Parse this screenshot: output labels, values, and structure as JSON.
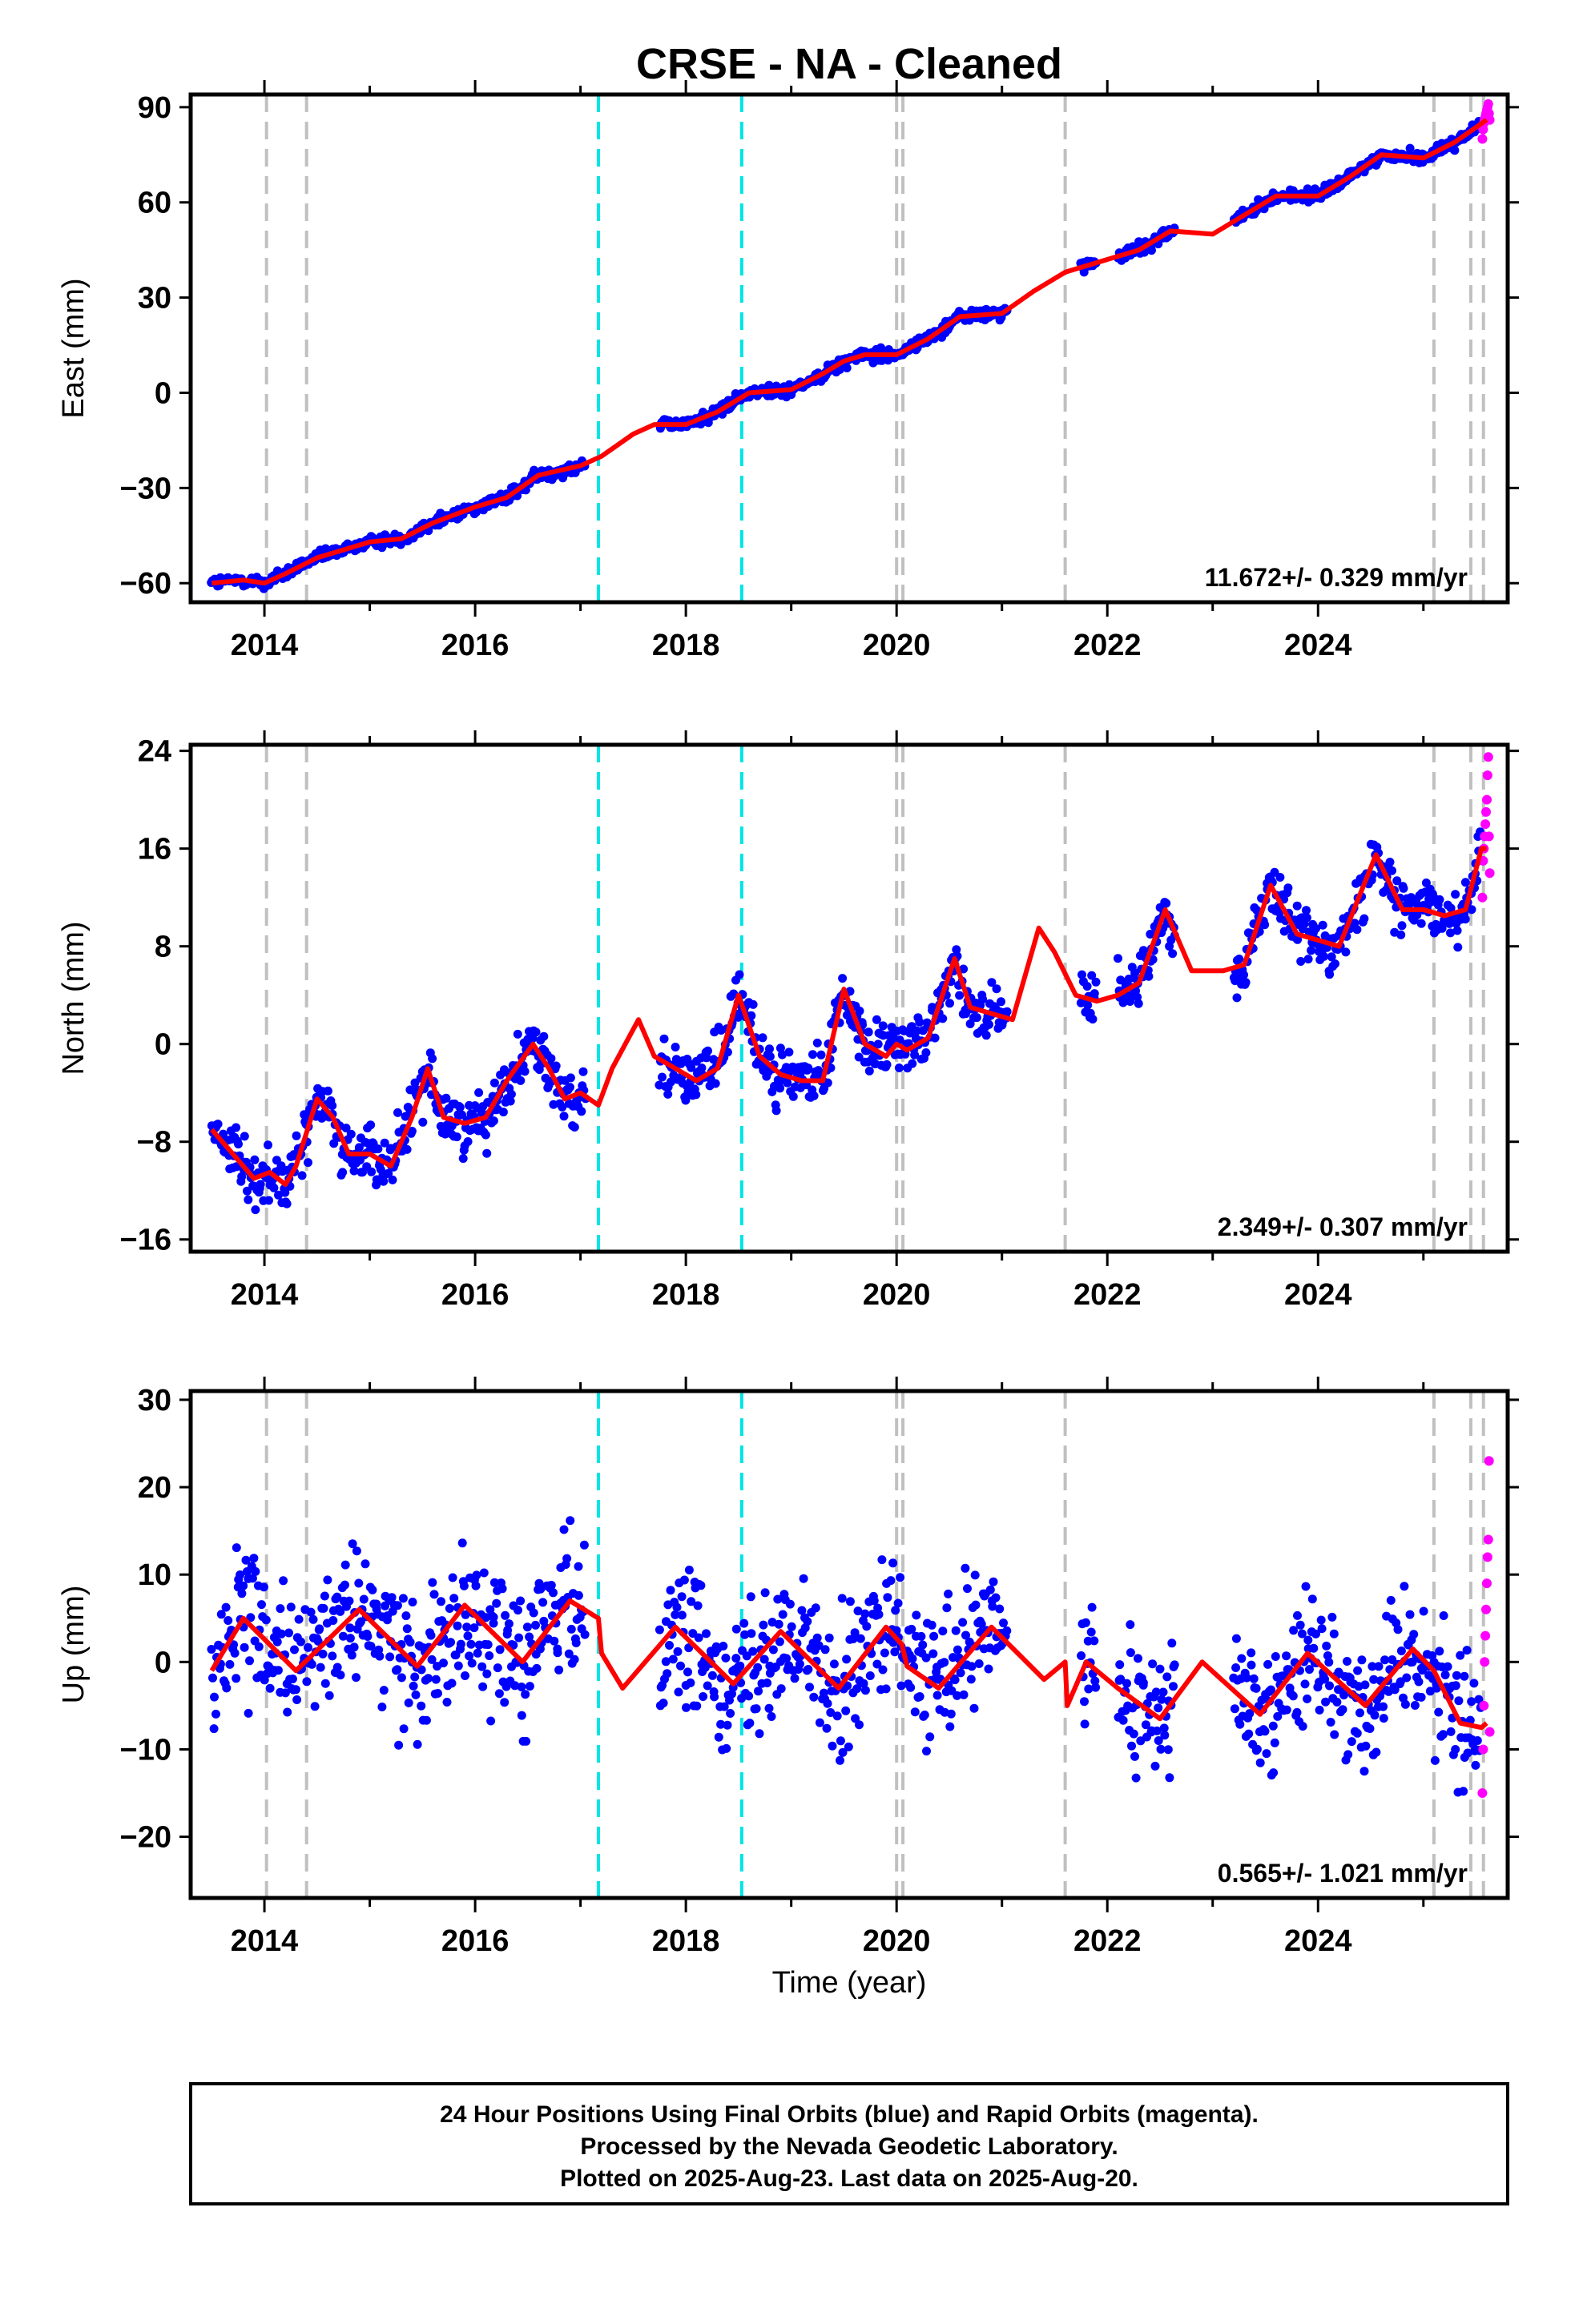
{
  "title": "CRSE  - NA - Cleaned",
  "xlabel": "Time (year)",
  "footer": {
    "line1": "24 Hour Positions Using Final Orbits (blue) and Rapid Orbits (magenta).",
    "line2": "Processed by the Nevada Geodetic Laboratory.",
    "line3": "Plotted on 2025-Aug-23. Last data on 2025-Aug-20."
  },
  "colors": {
    "final_orbits": "#0000ff",
    "rapid_orbits": "#ff00ff",
    "model": "#ff0000",
    "equipment_change": "#c0c0c0",
    "earthquake": "#00e5e5"
  },
  "chart_data": [
    {
      "type": "scatter",
      "ylabel": "East (mm)",
      "rate_text": "11.672+/- 0.329 mm/yr",
      "xlim": [
        2013.3,
        2025.8
      ],
      "ylim": [
        -66,
        94
      ],
      "yticks": [
        -60,
        -30,
        0,
        30,
        60,
        90
      ],
      "xticks": [
        2014,
        2016,
        2018,
        2020,
        2022,
        2024
      ],
      "grid": false,
      "gray_lines": [
        2014.02,
        2014.4,
        2020.0,
        2020.06,
        2021.6,
        2025.1,
        2025.45,
        2025.57
      ],
      "cyan_lines": [
        2017.17,
        2018.53
      ],
      "model": {
        "x": [
          2013.5,
          2013.8,
          2014.0,
          2014.2,
          2014.5,
          2015.0,
          2015.3,
          2015.6,
          2016.0,
          2016.3,
          2016.6,
          2017.0,
          2017.2,
          2017.5,
          2017.7,
          2018.0,
          2018.3,
          2018.6,
          2019.0,
          2019.3,
          2019.5,
          2019.7,
          2020.0,
          2020.3,
          2020.6,
          2021.0,
          2021.3,
          2021.6,
          2022.0,
          2022.3,
          2022.6,
          2023.0,
          2023.3,
          2023.6,
          2024.0,
          2024.3,
          2024.6,
          2025.0,
          2025.3,
          2025.6
        ],
        "y": [
          -60,
          -59,
          -60,
          -57,
          -52,
          -47,
          -46,
          -41,
          -36,
          -33,
          -26,
          -23,
          -20,
          -13,
          -10,
          -10,
          -6,
          0,
          1,
          6,
          10,
          12,
          12,
          17,
          24,
          25,
          32,
          38,
          42,
          45,
          51,
          50,
          56,
          62,
          62,
          68,
          75,
          74,
          79,
          86
        ]
      },
      "final_points": {
        "segments": [
          [
            2013.5,
            2017.05
          ],
          [
            2017.75,
            2021.05
          ],
          [
            2021.75,
            2021.9
          ],
          [
            2022.1,
            2022.65
          ],
          [
            2023.2,
            2025.55
          ]
        ],
        "noise_mm": 1.4
      },
      "rapid_points": {
        "x_start": 2025.56,
        "x_end": 2025.63,
        "y_values": [
          80,
          83,
          85,
          86,
          87,
          88,
          89,
          90,
          91,
          88,
          86
        ]
      }
    },
    {
      "type": "scatter",
      "ylabel": "North (mm)",
      "rate_text": "2.349+/- 0.307 mm/yr",
      "xlim": [
        2013.3,
        2025.8
      ],
      "ylim": [
        -17,
        24.5
      ],
      "yticks": [
        -16,
        -8,
        0,
        8,
        16,
        24
      ],
      "xticks": [
        2014,
        2016,
        2018,
        2020,
        2022,
        2024
      ],
      "grid": false,
      "gray_lines": [
        2014.02,
        2014.4,
        2020.0,
        2020.06,
        2021.6,
        2025.1,
        2025.45,
        2025.57
      ],
      "cyan_lines": [
        2017.17,
        2018.53
      ],
      "model": {
        "x": [
          2013.5,
          2013.6,
          2013.9,
          2014.05,
          2014.2,
          2014.3,
          2014.5,
          2014.65,
          2014.8,
          2015.0,
          2015.2,
          2015.4,
          2015.55,
          2015.7,
          2015.9,
          2016.1,
          2016.3,
          2016.55,
          2016.7,
          2016.85,
          2017.0,
          2017.17,
          2017.3,
          2017.55,
          2017.7,
          2017.9,
          2018.1,
          2018.3,
          2018.5,
          2018.7,
          2018.9,
          2019.1,
          2019.3,
          2019.5,
          2019.7,
          2019.9,
          2020.0,
          2020.1,
          2020.3,
          2020.55,
          2020.7,
          2020.9,
          2021.1,
          2021.35,
          2021.5,
          2021.7,
          2021.9,
          2022.1,
          2022.3,
          2022.55,
          2022.8,
          2023.1,
          2023.3,
          2023.55,
          2023.8,
          2024.0,
          2024.2,
          2024.55,
          2024.8,
          2025.0,
          2025.2,
          2025.4,
          2025.55,
          2025.6
        ],
        "y": [
          -7,
          -8,
          -11,
          -10.5,
          -11.5,
          -10,
          -4.5,
          -6,
          -9,
          -9,
          -10,
          -6,
          -2,
          -6,
          -6.5,
          -6,
          -3,
          0,
          -2,
          -4.5,
          -4,
          -5,
          -2,
          2,
          -1,
          -2,
          -3,
          -2,
          4,
          -1,
          -2.5,
          -3,
          -3,
          4.5,
          0,
          -1,
          0,
          -0.5,
          0.5,
          7,
          3,
          2.5,
          2,
          9.5,
          7.5,
          4,
          3.5,
          4,
          5,
          11,
          6,
          6,
          6.5,
          13,
          9,
          8.5,
          8,
          15.5,
          11,
          11,
          10.5,
          11,
          16,
          16
        ]
      },
      "final_points": {
        "segments": [
          [
            2013.5,
            2017.05
          ],
          [
            2017.75,
            2021.05
          ],
          [
            2021.75,
            2021.9
          ],
          [
            2022.1,
            2022.65
          ],
          [
            2023.2,
            2025.55
          ]
        ],
        "noise_mm": 1.6
      },
      "rapid_points": {
        "x_start": 2025.56,
        "x_end": 2025.63,
        "y_values": [
          12,
          15,
          16,
          17,
          18,
          19,
          20,
          22,
          23.5,
          17,
          14
        ]
      }
    },
    {
      "type": "scatter",
      "ylabel": "Up (mm)",
      "rate_text": "0.565+/- 1.021 mm/yr",
      "xlim": [
        2013.3,
        2025.8
      ],
      "ylim": [
        -27,
        31
      ],
      "yticks": [
        -20,
        -10,
        0,
        10,
        20,
        30
      ],
      "xticks": [
        2014,
        2016,
        2018,
        2020,
        2022,
        2024
      ],
      "grid": false,
      "gray_lines": [
        2014.02,
        2014.4,
        2020.0,
        2020.06,
        2021.6,
        2025.1,
        2025.45,
        2025.57
      ],
      "cyan_lines": [
        2017.17,
        2018.53
      ],
      "model": {
        "x": [
          2013.5,
          2013.8,
          2014.3,
          2014.9,
          2015.45,
          2015.9,
          2016.45,
          2016.9,
          2017.17,
          2017.2,
          2017.4,
          2017.9,
          2018.45,
          2018.9,
          2019.45,
          2019.9,
          2020.05,
          2020.1,
          2020.4,
          2020.9,
          2021.4,
          2021.6,
          2021.62,
          2021.8,
          2022.1,
          2022.5,
          2022.9,
          2023.45,
          2023.9,
          2024.45,
          2024.9,
          2025.1,
          2025.35,
          2025.55,
          2025.6
        ],
        "y": [
          -1,
          5,
          -1,
          6,
          -0.5,
          6.5,
          0,
          7,
          5,
          1,
          -3,
          4,
          -2.5,
          3.5,
          -3,
          4,
          2,
          -0.5,
          -3,
          4,
          -2,
          0,
          -5,
          0,
          -3,
          -6.5,
          0,
          -6,
          1,
          -5,
          1.5,
          -1,
          -7,
          -7.5,
          -7
        ]
      },
      "final_points": {
        "segments": [
          [
            2013.5,
            2017.05
          ],
          [
            2017.75,
            2021.05
          ],
          [
            2021.75,
            2021.9
          ],
          [
            2022.1,
            2022.65
          ],
          [
            2023.2,
            2025.55
          ]
        ],
        "noise_mm": 5.5
      },
      "rapid_points": {
        "x_start": 2025.56,
        "x_end": 2025.63,
        "y_values": [
          -15,
          -10,
          -5,
          0,
          3,
          6,
          9,
          12,
          14,
          23,
          -8
        ]
      }
    }
  ]
}
